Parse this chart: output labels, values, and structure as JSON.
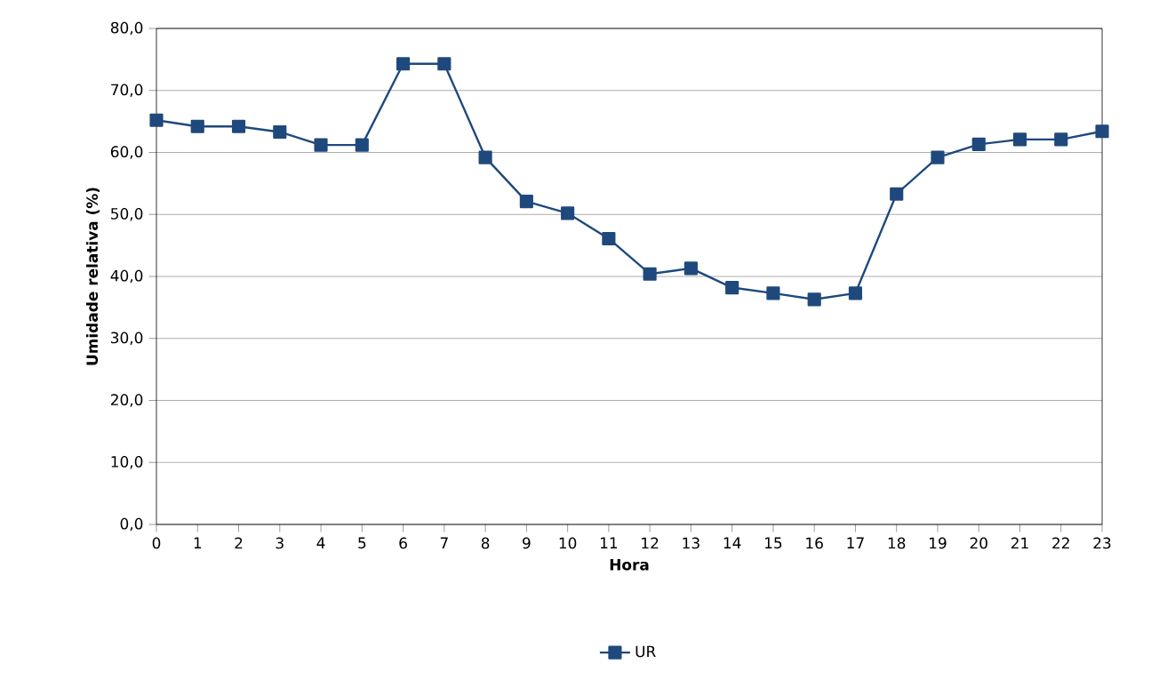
{
  "chart_data": {
    "type": "line",
    "xlabel": "Hora",
    "ylabel": "Umidade relativa (%)",
    "categories": [
      "0",
      "1",
      "2",
      "3",
      "4",
      "5",
      "6",
      "7",
      "8",
      "9",
      "10",
      "11",
      "12",
      "13",
      "14",
      "15",
      "16",
      "17",
      "18",
      "19",
      "20",
      "21",
      "22",
      "23"
    ],
    "series": [
      {
        "name": "UR",
        "color": "#1f497d",
        "values": [
          65.2,
          64.2,
          64.2,
          63.3,
          61.2,
          61.2,
          74.3,
          74.3,
          59.2,
          52.1,
          50.2,
          46.1,
          40.4,
          41.3,
          38.2,
          37.3,
          36.3,
          37.3,
          53.3,
          59.2,
          61.3,
          62.1,
          62.1,
          63.4
        ]
      }
    ],
    "ylim": [
      0,
      80
    ],
    "yticks": [
      {
        "value": 0,
        "label": "0,0"
      },
      {
        "value": 10,
        "label": "10,0"
      },
      {
        "value": 20,
        "label": "20,0"
      },
      {
        "value": 30,
        "label": "30,0"
      },
      {
        "value": 40,
        "label": "40,0"
      },
      {
        "value": 50,
        "label": "50,0"
      },
      {
        "value": 60,
        "label": "60,0"
      },
      {
        "value": 70,
        "label": "70,0"
      },
      {
        "value": 80,
        "label": "80,0"
      }
    ],
    "grid": "y",
    "legend": "bottom",
    "marker": "square",
    "line_style": "solid"
  }
}
